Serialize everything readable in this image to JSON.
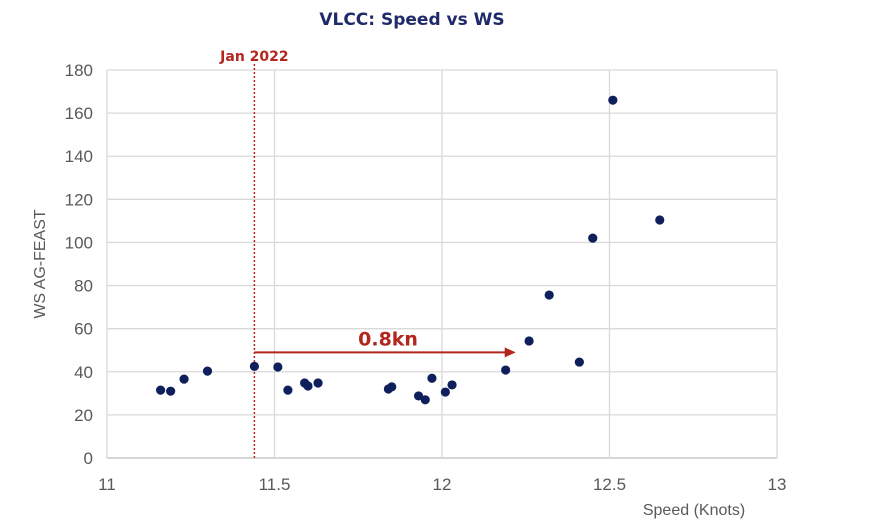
{
  "chart_data": {
    "type": "scatter",
    "title": "VLCC: Speed vs WS",
    "xlabel": "Speed (Knots)",
    "ylabel": "WS AG-FEAST",
    "xlim": [
      11,
      13
    ],
    "ylim": [
      0,
      180
    ],
    "xticks": [
      11,
      11.5,
      12,
      12.5,
      13
    ],
    "xtick_labels": [
      "11",
      "11.5",
      "12",
      "12.5",
      "13"
    ],
    "yticks": [
      0,
      20,
      40,
      60,
      80,
      100,
      120,
      140,
      160,
      180
    ],
    "ytick_labels": [
      "0",
      "20",
      "40",
      "60",
      "80",
      "100",
      "120",
      "140",
      "160",
      "180"
    ],
    "grid": true,
    "points": [
      {
        "x": 11.16,
        "y": 31.5
      },
      {
        "x": 11.19,
        "y": 31
      },
      {
        "x": 11.23,
        "y": 36.6
      },
      {
        "x": 11.3,
        "y": 40.3
      },
      {
        "x": 11.44,
        "y": 42.5
      },
      {
        "x": 11.51,
        "y": 42.2
      },
      {
        "x": 11.54,
        "y": 31.5
      },
      {
        "x": 11.59,
        "y": 34.8
      },
      {
        "x": 11.6,
        "y": 33.4
      },
      {
        "x": 11.63,
        "y": 34.8
      },
      {
        "x": 11.84,
        "y": 32
      },
      {
        "x": 11.85,
        "y": 33
      },
      {
        "x": 11.93,
        "y": 28.8
      },
      {
        "x": 11.95,
        "y": 27
      },
      {
        "x": 11.97,
        "y": 37
      },
      {
        "x": 12.01,
        "y": 30.6
      },
      {
        "x": 12.03,
        "y": 33.9
      },
      {
        "x": 12.19,
        "y": 40.8
      },
      {
        "x": 12.26,
        "y": 54.3
      },
      {
        "x": 12.32,
        "y": 75.6
      },
      {
        "x": 12.41,
        "y": 44.5
      },
      {
        "x": 12.45,
        "y": 102
      },
      {
        "x": 12.51,
        "y": 166
      },
      {
        "x": 12.65,
        "y": 110.4
      }
    ],
    "annotations": {
      "vline": {
        "x": 11.44,
        "label": "Jan 2022"
      },
      "arrow": {
        "x_from": 11.44,
        "x_to": 12.22,
        "y": 49,
        "label": "0.8kn"
      }
    },
    "colors": {
      "points": "#0f1f5c",
      "annotation": "#b3261e",
      "title": "#1f2a6b",
      "grid": "#d9d9d9"
    }
  }
}
